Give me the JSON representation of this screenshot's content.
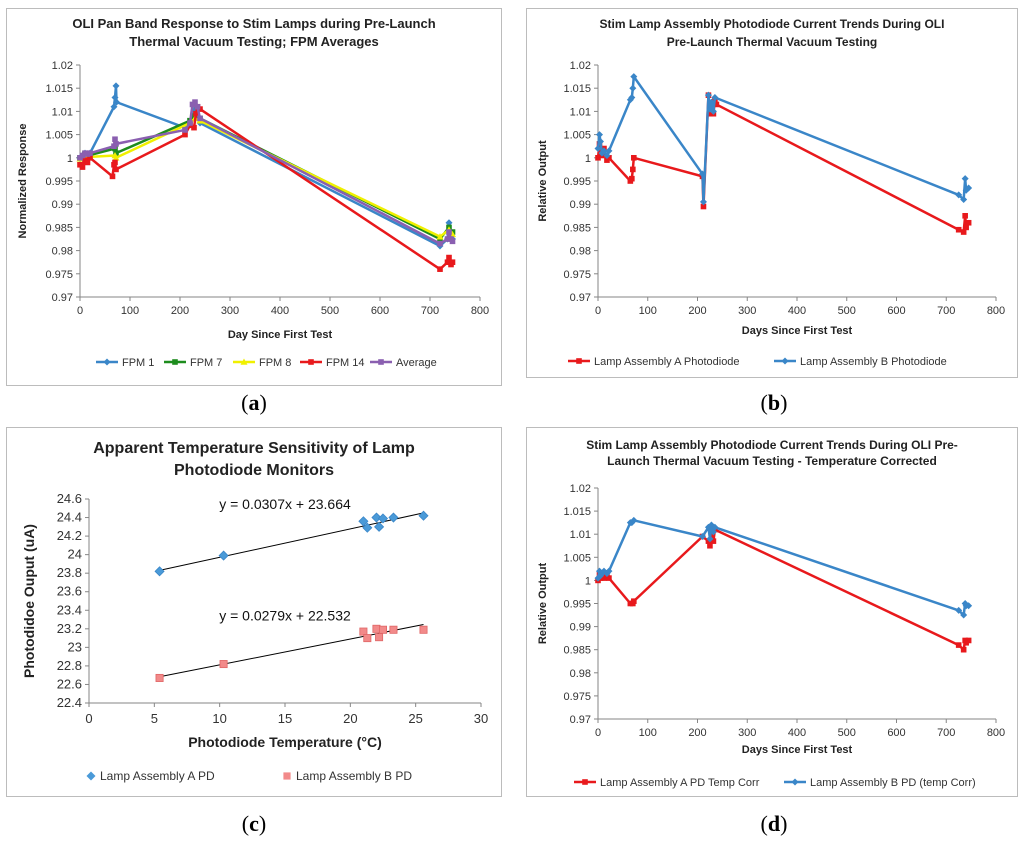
{
  "panel_labels": [
    {
      "open": "(",
      "letter": "a",
      "close": ")"
    },
    {
      "open": "(",
      "letter": "b",
      "close": ")"
    },
    {
      "open": "(",
      "letter": "c",
      "close": ")"
    },
    {
      "open": "(",
      "letter": "d",
      "close": ")"
    }
  ],
  "chart_data": [
    {
      "type": "line",
      "title": [
        "OLI Pan Band Response to Stim Lamps during Pre-Launch",
        "Thermal Vacuum Testing; FPM Averages"
      ],
      "xlabel": "Day Since First Test",
      "ylabel": "Normalized Response",
      "xlim": [
        0,
        800
      ],
      "xstep": 100,
      "ylim": [
        0.97,
        1.02
      ],
      "ystep": 0.005,
      "x_ticks": [
        "0",
        "100",
        "200",
        "300",
        "400",
        "500",
        "600",
        "700",
        "800"
      ],
      "y_ticks": [
        "0.97",
        "0.975",
        "0.98",
        "0.985",
        "0.99",
        "0.995",
        "1",
        "1.005",
        "1.01",
        "1.015",
        "1.02"
      ],
      "legend_position": "bottom",
      "series": [
        {
          "name": "FPM 1",
          "color": "#3a86c8",
          "marker": "diamond",
          "points": [
            [
              0,
              1.0
            ],
            [
              5,
              1.0005
            ],
            [
              10,
              1.001
            ],
            [
              15,
              1.0005
            ],
            [
              20,
              1.001
            ],
            [
              68,
              1.011
            ],
            [
              70,
              1.013
            ],
            [
              72,
              1.0155
            ],
            [
              73,
              1.012
            ],
            [
              210,
              1.0065
            ],
            [
              225,
              1.0085
            ],
            [
              230,
              1.0115
            ],
            [
              235,
              1.009
            ],
            [
              240,
              1.0075
            ],
            [
              720,
              0.981
            ],
            [
              735,
              0.9825
            ],
            [
              738,
              0.986
            ],
            [
              742,
              0.9835
            ],
            [
              745,
              0.9825
            ]
          ]
        },
        {
          "name": "FPM 7",
          "color": "#1d8c1d",
          "marker": "square",
          "points": [
            [
              0,
              1.0
            ],
            [
              10,
              1.0008
            ],
            [
              20,
              1.0006
            ],
            [
              70,
              1.002
            ],
            [
              72,
              1.001
            ],
            [
              220,
              1.008
            ],
            [
              230,
              1.009
            ],
            [
              240,
              1.0085
            ],
            [
              720,
              0.9825
            ],
            [
              738,
              0.985
            ],
            [
              745,
              0.984
            ]
          ]
        },
        {
          "name": "FPM 8",
          "color": "#f0f000",
          "marker": "triangle",
          "points": [
            [
              0,
              0.9998
            ],
            [
              10,
              1.0004
            ],
            [
              20,
              1.0002
            ],
            [
              70,
              1.0005
            ],
            [
              72,
              1.0
            ],
            [
              220,
              1.0075
            ],
            [
              230,
              1.0085
            ],
            [
              240,
              1.008
            ],
            [
              720,
              0.983
            ],
            [
              738,
              0.9845
            ],
            [
              745,
              0.9835
            ]
          ]
        },
        {
          "name": "FPM 14",
          "color": "#e8191c",
          "marker": "square",
          "points": [
            [
              0,
              0.9985
            ],
            [
              5,
              0.998
            ],
            [
              10,
              0.9995
            ],
            [
              15,
              0.999
            ],
            [
              20,
              1.0
            ],
            [
              65,
              0.996
            ],
            [
              68,
              0.9985
            ],
            [
              70,
              0.999
            ],
            [
              72,
              0.9975
            ],
            [
              210,
              1.005
            ],
            [
              220,
              1.007
            ],
            [
              228,
              1.0065
            ],
            [
              232,
              1.0095
            ],
            [
              235,
              1.011
            ],
            [
              240,
              1.0105
            ],
            [
              720,
              0.976
            ],
            [
              735,
              0.9775
            ],
            [
              738,
              0.9785
            ],
            [
              742,
              0.977
            ],
            [
              745,
              0.9775
            ]
          ]
        },
        {
          "name": "Average",
          "color": "#8a5fb0",
          "marker": "square",
          "points": [
            [
              0,
              1.0
            ],
            [
              5,
              1.0005
            ],
            [
              10,
              1.001
            ],
            [
              15,
              1.0008
            ],
            [
              20,
              1.001
            ],
            [
              68,
              1.0025
            ],
            [
              70,
              1.004
            ],
            [
              72,
              1.003
            ],
            [
              210,
              1.006
            ],
            [
              220,
              1.0075
            ],
            [
              225,
              1.0115
            ],
            [
              230,
              1.012
            ],
            [
              235,
              1.011
            ],
            [
              240,
              1.0085
            ],
            [
              720,
              0.9815
            ],
            [
              735,
              0.9825
            ],
            [
              738,
              0.984
            ],
            [
              742,
              0.9825
            ],
            [
              745,
              0.982
            ]
          ]
        }
      ]
    },
    {
      "type": "line",
      "title": [
        "Stim Lamp Assembly Photodiode Current Trends During OLI",
        "Pre-Launch Thermal Vacuum Testing"
      ],
      "xlabel": "Days Since First Test",
      "ylabel": "Relative Output",
      "xlim": [
        0,
        800
      ],
      "xstep": 100,
      "ylim": [
        0.97,
        1.02
      ],
      "ystep": 0.005,
      "x_ticks": [
        "0",
        "100",
        "200",
        "300",
        "400",
        "500",
        "600",
        "700",
        "800"
      ],
      "y_ticks": [
        "0.97",
        "0.975",
        "0.98",
        "0.985",
        "0.99",
        "0.995",
        "1",
        "1.005",
        "1.01",
        "1.015",
        "1.02"
      ],
      "legend_position": "bottom",
      "series": [
        {
          "name": "Lamp Assembly A Photodiode",
          "color": "#e8191c",
          "marker": "square",
          "points": [
            [
              0,
              1.0
            ],
            [
              3,
              1.003
            ],
            [
              5,
              1.0015
            ],
            [
              8,
              1.0005
            ],
            [
              12,
              1.002
            ],
            [
              18,
              0.9995
            ],
            [
              22,
              1.0
            ],
            [
              65,
              0.995
            ],
            [
              68,
              0.9955
            ],
            [
              70,
              0.9975
            ],
            [
              72,
              1.0
            ],
            [
              210,
              0.996
            ],
            [
              212,
              0.9895
            ],
            [
              222,
              1.0135
            ],
            [
              225,
              1.0095
            ],
            [
              228,
              1.0115
            ],
            [
              232,
              1.0095
            ],
            [
              235,
              1.0125
            ],
            [
              238,
              1.0115
            ],
            [
              725,
              0.9845
            ],
            [
              735,
              0.984
            ],
            [
              738,
              0.9875
            ],
            [
              740,
              0.985
            ],
            [
              745,
              0.986
            ]
          ]
        },
        {
          "name": "Lamp Assembly B Photodiode",
          "color": "#3a86c8",
          "marker": "diamond",
          "points": [
            [
              0,
              1.002
            ],
            [
              3,
              1.005
            ],
            [
              5,
              1.0035
            ],
            [
              8,
              1.001
            ],
            [
              12,
              1.0015
            ],
            [
              18,
              1.0005
            ],
            [
              22,
              1.0015
            ],
            [
              65,
              1.0125
            ],
            [
              68,
              1.013
            ],
            [
              70,
              1.015
            ],
            [
              72,
              1.0175
            ],
            [
              210,
              0.9965
            ],
            [
              212,
              0.9905
            ],
            [
              222,
              1.0135
            ],
            [
              225,
              1.0105
            ],
            [
              228,
              1.012
            ],
            [
              232,
              1.01
            ],
            [
              235,
              1.013
            ],
            [
              725,
              0.992
            ],
            [
              735,
              0.991
            ],
            [
              738,
              0.9955
            ],
            [
              740,
              0.993
            ],
            [
              745,
              0.9935
            ]
          ]
        }
      ]
    },
    {
      "type": "scatter",
      "title": [
        "Apparent Temperature Sensitivity of Lamp",
        "Photodiode Monitors"
      ],
      "xlabel": "Photodiode Temperature (°C)",
      "ylabel": "Photodidoe Ouput (uA)",
      "xlim": [
        0,
        30
      ],
      "xstep": 5,
      "ylim": [
        22.4,
        24.6
      ],
      "ystep": 0.2,
      "x_ticks": [
        "0",
        "5",
        "10",
        "15",
        "20",
        "25",
        "30"
      ],
      "y_ticks": [
        "22.4",
        "22.6",
        "22.8",
        "23",
        "23.2",
        "23.4",
        "23.6",
        "23.8",
        "24",
        "24.2",
        "24.4",
        "24.6"
      ],
      "legend_position": "bottom",
      "annotations": [
        {
          "text": "y = 0.0307x + 23.664",
          "x": 15,
          "y": 24.49
        },
        {
          "text": "y = 0.0279x + 22.532",
          "x": 15,
          "y": 23.29
        }
      ],
      "trendlines": [
        {
          "slope": 0.0307,
          "intercept": 23.664,
          "x": [
            5.4,
            25.6
          ]
        },
        {
          "slope": 0.0279,
          "intercept": 22.532,
          "x": [
            5.4,
            25.6
          ]
        }
      ],
      "series": [
        {
          "name": "Lamp Assembly A PD",
          "color": "#4a9ad8",
          "marker": "diamond",
          "points": [
            [
              5.4,
              23.82
            ],
            [
              10.3,
              23.99
            ],
            [
              21.0,
              24.36
            ],
            [
              21.3,
              24.29
            ],
            [
              22.0,
              24.4
            ],
            [
              22.2,
              24.3
            ],
            [
              22.5,
              24.39
            ],
            [
              23.3,
              24.4
            ],
            [
              25.6,
              24.42
            ]
          ]
        },
        {
          "name": "Lamp Assembly B PD",
          "color": "#f28a8a",
          "marker": "square",
          "points": [
            [
              5.4,
              22.67
            ],
            [
              10.3,
              22.82
            ],
            [
              21.0,
              23.17
            ],
            [
              21.3,
              23.1
            ],
            [
              22.0,
              23.2
            ],
            [
              22.2,
              23.11
            ],
            [
              22.5,
              23.19
            ],
            [
              23.3,
              23.19
            ],
            [
              25.6,
              23.19
            ]
          ]
        }
      ]
    },
    {
      "type": "line",
      "title": [
        "Stim Lamp Assembly Photodiode Current Trends During OLI Pre-",
        "Launch Thermal Vacuum Testing - Temperature Corrected"
      ],
      "xlabel": "Days Since First Test",
      "ylabel": "Relative Output",
      "xlim": [
        0,
        800
      ],
      "xstep": 100,
      "ylim": [
        0.97,
        1.02
      ],
      "ystep": 0.005,
      "x_ticks": [
        "0",
        "100",
        "200",
        "300",
        "400",
        "500",
        "600",
        "700",
        "800"
      ],
      "y_ticks": [
        "0.97",
        "0.975",
        "0.98",
        "0.985",
        "0.99",
        "0.995",
        "1",
        "1.005",
        "1.01",
        "1.015",
        "1.02"
      ],
      "legend_position": "bottom",
      "series": [
        {
          "name": "Lamp Assembly A PD Temp Corr",
          "color": "#e8191c",
          "marker": "square",
          "points": [
            [
              0,
              1.0
            ],
            [
              3,
              1.0015
            ],
            [
              5,
              1.0005
            ],
            [
              8,
              1.001
            ],
            [
              12,
              1.0005
            ],
            [
              18,
              1.001
            ],
            [
              22,
              1.0005
            ],
            [
              65,
              0.995
            ],
            [
              70,
              0.995
            ],
            [
              72,
              0.9955
            ],
            [
              210,
              1.0095
            ],
            [
              222,
              1.0085
            ],
            [
              225,
              1.0075
            ],
            [
              228,
              1.0105
            ],
            [
              232,
              1.0085
            ],
            [
              235,
              1.011
            ],
            [
              725,
              0.986
            ],
            [
              735,
              0.985
            ],
            [
              738,
              0.987
            ],
            [
              740,
              0.9865
            ],
            [
              745,
              0.987
            ]
          ]
        },
        {
          "name": "Lamp Assembly B PD (temp Corr)",
          "color": "#3a86c8",
          "marker": "diamond",
          "points": [
            [
              0,
              1.0005
            ],
            [
              3,
              1.002
            ],
            [
              5,
              1.001
            ],
            [
              8,
              1.0015
            ],
            [
              12,
              1.002
            ],
            [
              18,
              1.0015
            ],
            [
              22,
              1.002
            ],
            [
              65,
              1.0125
            ],
            [
              68,
              1.0125
            ],
            [
              72,
              1.013
            ],
            [
              210,
              1.0095
            ],
            [
              222,
              1.0115
            ],
            [
              225,
              1.009
            ],
            [
              228,
              1.012
            ],
            [
              232,
              1.0105
            ],
            [
              235,
              1.0115
            ],
            [
              725,
              0.9935
            ],
            [
              735,
              0.9925
            ],
            [
              738,
              0.995
            ],
            [
              740,
              0.9945
            ],
            [
              745,
              0.9945
            ]
          ]
        }
      ]
    }
  ]
}
